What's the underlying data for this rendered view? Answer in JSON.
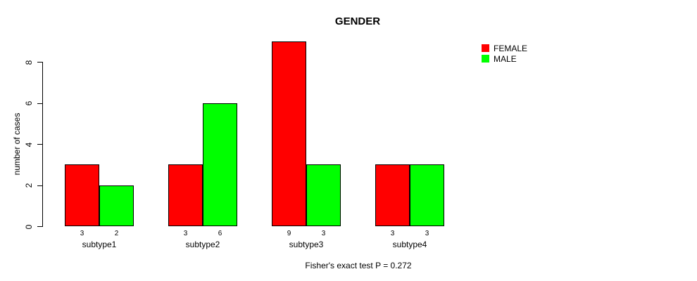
{
  "chart_data": {
    "type": "bar",
    "title": "GENDER",
    "ylabel": "number of cases",
    "xlabel": "",
    "caption": "Fisher's exact test P = 0.272",
    "categories": [
      "subtype1",
      "subtype2",
      "subtype3",
      "subtype4"
    ],
    "series": [
      {
        "name": "FEMALE",
        "color": "#ff0000",
        "values": [
          3,
          3,
          9,
          3
        ]
      },
      {
        "name": "MALE",
        "color": "#00ff00",
        "values": [
          2,
          6,
          3,
          3
        ]
      }
    ],
    "value_labels": [
      [
        "3",
        "2"
      ],
      [
        "3",
        "6"
      ],
      [
        "9",
        "3"
      ],
      [
        "3",
        "3"
      ]
    ],
    "y_ticks": [
      0,
      2,
      4,
      6,
      8
    ],
    "ylim": [
      0,
      8
    ],
    "grid": false,
    "legend_position": "top-right-outside",
    "bar_border_color": "#000000",
    "background_color": "#ffffff",
    "text_color": "#000000"
  }
}
